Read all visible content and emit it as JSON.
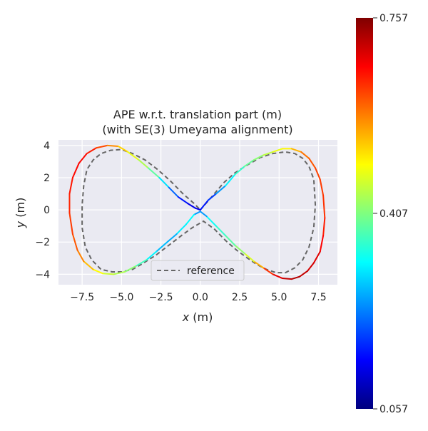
{
  "chart_data": {
    "type": "line",
    "title_line1": "APE w.r.t. translation part (m)",
    "title_line2": "(with SE(3) Umeyama alignment)",
    "xlabel_var": "x",
    "xlabel_unit": " (m)",
    "ylabel_var": "y",
    "ylabel_unit": " (m)",
    "xlim": [
      -9.0,
      8.7
    ],
    "ylim": [
      -4.65,
      4.35
    ],
    "xticks": [
      -7.5,
      -5.0,
      -2.5,
      0.0,
      2.5,
      5.0,
      7.5
    ],
    "xtick_labels": [
      "−7.5",
      "−5.0",
      "−2.5",
      "0.0",
      "2.5",
      "5.0",
      "7.5"
    ],
    "yticks": [
      -4,
      -2,
      0,
      2,
      4
    ],
    "ytick_labels": [
      "−4",
      "−2",
      "0",
      "2",
      "4"
    ],
    "grid": true,
    "legend": {
      "position": "bottom-center",
      "label": "reference"
    },
    "colorbar": {
      "min": 0.057,
      "max": 0.757,
      "tick_values": [
        0.057,
        0.407,
        0.757
      ],
      "tick_labels": [
        "0.057",
        "0.407",
        "0.757"
      ],
      "colormap": "jet"
    },
    "series": [
      {
        "name": "reference",
        "style": "dashed",
        "color": "#666666",
        "x": [
          0.0,
          0.8,
          1.5,
          2.2,
          3.0,
          3.8,
          4.6,
          5.4,
          6.0,
          6.5,
          6.9,
          7.2,
          7.3,
          7.2,
          6.9,
          6.5,
          6.0,
          5.4,
          4.8,
          4.2,
          3.6,
          3.0,
          2.3,
          1.6,
          0.9,
          0.2,
          -0.5,
          -1.2,
          -2.0,
          -2.8,
          -3.6,
          -4.3,
          -5.0,
          -5.6,
          -6.3,
          -6.9,
          -7.3,
          -7.5,
          -7.5,
          -7.4,
          -7.2,
          -6.8,
          -6.3,
          -5.7,
          -5.0,
          -4.3,
          -3.5,
          -2.7,
          -1.9,
          -1.1,
          -0.4,
          0.0
        ],
        "y": [
          0.0,
          0.9,
          1.7,
          2.3,
          2.8,
          3.25,
          3.5,
          3.6,
          3.5,
          3.2,
          2.7,
          1.9,
          0.3,
          -1.1,
          -2.3,
          -3.1,
          -3.6,
          -3.9,
          -3.9,
          -3.7,
          -3.4,
          -3.0,
          -2.5,
          -1.9,
          -1.2,
          -0.7,
          -1.1,
          -1.6,
          -2.2,
          -2.8,
          -3.3,
          -3.7,
          -3.85,
          -3.85,
          -3.7,
          -3.1,
          -2.3,
          -1.1,
          0.3,
          1.5,
          2.5,
          3.1,
          3.5,
          3.7,
          3.75,
          3.5,
          3.1,
          2.5,
          1.8,
          1.0,
          0.4,
          0.0
        ]
      },
      {
        "name": "",
        "style": "solid",
        "colormap_values": true,
        "x": [
          0.0,
          0.5,
          1.0,
          1.6,
          2.2,
          2.8,
          3.4,
          4.0,
          4.6,
          5.2,
          5.8,
          6.4,
          6.9,
          7.3,
          7.6,
          7.8,
          7.9,
          7.8,
          7.6,
          7.2,
          6.8,
          6.3,
          5.8,
          5.2,
          4.6,
          4.0,
          3.4,
          2.8,
          2.2,
          1.6,
          1.0,
          0.4,
          0.0,
          -0.4,
          -0.9,
          -1.5,
          -2.1,
          -2.8,
          -3.4,
          -4.1,
          -4.8,
          -5.5,
          -6.2,
          -6.8,
          -7.4,
          -7.8,
          -8.1,
          -8.3,
          -8.3,
          -8.1,
          -7.7,
          -7.2,
          -6.6,
          -5.9,
          -5.2,
          -4.6,
          -3.9,
          -3.3,
          -2.6,
          -2.0,
          -1.4,
          -0.8,
          -0.3,
          0.0
        ],
        "y": [
          0.0,
          0.6,
          1.0,
          1.5,
          2.2,
          2.7,
          3.1,
          3.4,
          3.6,
          3.8,
          3.8,
          3.6,
          3.2,
          2.6,
          1.9,
          0.9,
          -0.5,
          -1.6,
          -2.6,
          -3.3,
          -3.8,
          -4.15,
          -4.3,
          -4.25,
          -4.0,
          -3.6,
          -3.2,
          -2.7,
          -2.2,
          -1.6,
          -1.0,
          -0.4,
          -0.1,
          -0.3,
          -0.9,
          -1.5,
          -2.0,
          -2.6,
          -3.1,
          -3.5,
          -3.85,
          -4.0,
          -3.95,
          -3.7,
          -3.2,
          -2.5,
          -1.5,
          -0.2,
          1.0,
          2.0,
          2.9,
          3.5,
          3.85,
          4.0,
          3.95,
          3.6,
          3.1,
          2.6,
          2.0,
          1.4,
          0.8,
          0.4,
          0.1,
          0.0
        ],
        "ape": [
          0.15,
          0.17,
          0.2,
          0.3,
          0.33,
          0.38,
          0.4,
          0.43,
          0.47,
          0.49,
          0.51,
          0.58,
          0.6,
          0.62,
          0.63,
          0.63,
          0.64,
          0.66,
          0.68,
          0.7,
          0.7,
          0.72,
          0.72,
          0.7,
          0.67,
          0.6,
          0.5,
          0.44,
          0.4,
          0.36,
          0.35,
          0.3,
          0.2,
          0.3,
          0.34,
          0.28,
          0.25,
          0.3,
          0.33,
          0.4,
          0.43,
          0.45,
          0.47,
          0.52,
          0.56,
          0.6,
          0.62,
          0.64,
          0.65,
          0.66,
          0.67,
          0.66,
          0.64,
          0.6,
          0.55,
          0.5,
          0.46,
          0.42,
          0.35,
          0.25,
          0.18,
          0.14,
          0.12,
          0.15
        ]
      }
    ]
  }
}
